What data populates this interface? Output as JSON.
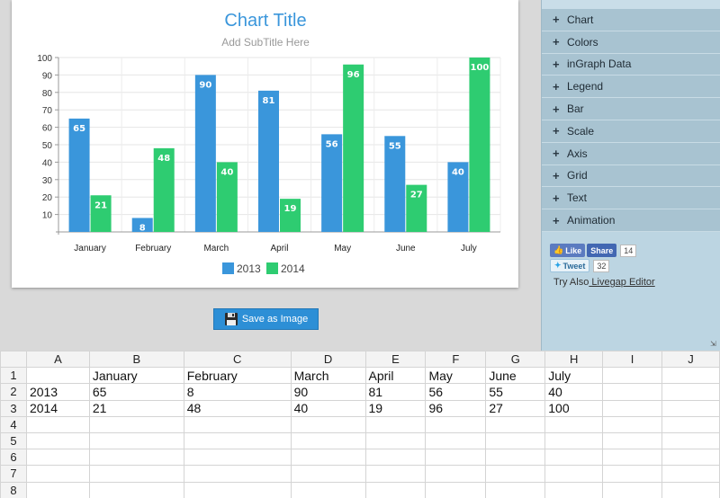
{
  "chart": {
    "title": "Chart Title",
    "subtitle": "Add SubTitle Here",
    "legend": [
      "2013",
      "2014"
    ]
  },
  "chart_data": {
    "type": "bar",
    "title": "Chart Title",
    "subtitle": "Add SubTitle Here",
    "categories": [
      "January",
      "February",
      "March",
      "April",
      "May",
      "June",
      "July"
    ],
    "series": [
      {
        "name": "2013",
        "values": [
          65,
          8,
          90,
          81,
          56,
          55,
          40
        ],
        "color": "#3a96db"
      },
      {
        "name": "2014",
        "values": [
          21,
          48,
          40,
          19,
          96,
          27,
          100
        ],
        "color": "#2ecc71"
      }
    ],
    "ylim": [
      0,
      100
    ],
    "yticks": [
      10,
      20,
      30,
      40,
      50,
      60,
      70,
      80,
      90,
      100
    ],
    "grid": true,
    "legend_position": "bottom",
    "data_labels": true
  },
  "save_button": {
    "label": "Save as Image"
  },
  "panel": {
    "items": [
      "Chart",
      "Colors",
      "inGraph Data",
      "Legend",
      "Bar",
      "Scale",
      "Axis",
      "Grid",
      "Text",
      "Animation"
    ],
    "like_label": "Like",
    "share_label": "Share",
    "share_count": "14",
    "tweet_label": "Tweet",
    "tweet_count": "32",
    "try_also_text": "Try Also",
    "try_also_link": " Livegap Editor"
  },
  "sheet": {
    "columns": [
      "A",
      "B",
      "C",
      "D",
      "E",
      "F",
      "G",
      "H",
      "I",
      "J"
    ],
    "rows": [
      [
        "1",
        "",
        "January",
        "February",
        "March",
        "April",
        "May",
        "June",
        "July",
        "",
        ""
      ],
      [
        "2",
        "2013",
        "65",
        "8",
        "90",
        "81",
        "56",
        "55",
        "40",
        "",
        ""
      ],
      [
        "3",
        "2014",
        "21",
        "48",
        "40",
        "19",
        "96",
        "27",
        "100",
        "",
        ""
      ],
      [
        "4",
        "",
        "",
        "",
        "",
        "",
        "",
        "",
        "",
        "",
        ""
      ],
      [
        "5",
        "",
        "",
        "",
        "",
        "",
        "",
        "",
        "",
        "",
        ""
      ],
      [
        "6",
        "",
        "",
        "",
        "",
        "",
        "",
        "",
        "",
        "",
        ""
      ],
      [
        "7",
        "",
        "",
        "",
        "",
        "",
        "",
        "",
        "",
        "",
        ""
      ],
      [
        "8",
        "",
        "",
        "",
        "",
        "",
        "",
        "",
        "",
        "",
        ""
      ]
    ]
  },
  "colors": {
    "accent": "#2d8fd6",
    "title": "#3a96db",
    "series2013": "#3a96db",
    "series2014": "#2ecc71"
  }
}
